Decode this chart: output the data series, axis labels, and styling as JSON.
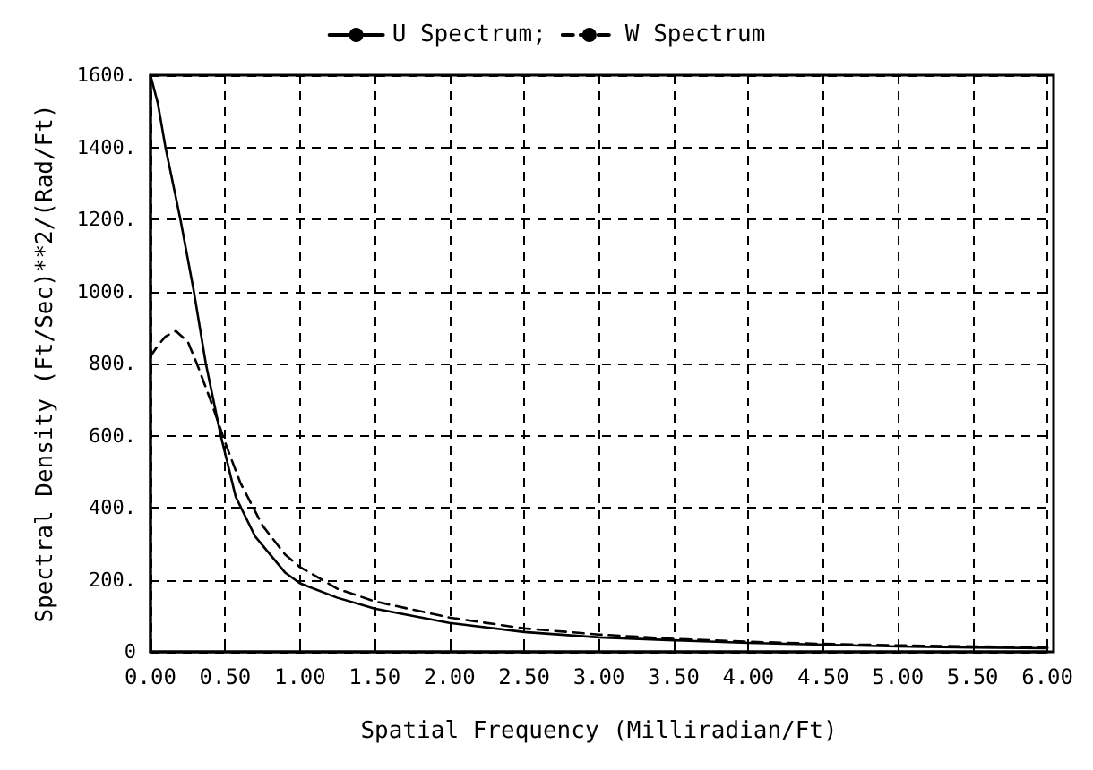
{
  "chart_data": {
    "type": "line",
    "xlabel": "Spatial Frequency (Milliradian/Ft)",
    "ylabel": "Spectral Density (Ft/Sec)**2/(Rad/Ft)",
    "legend": "top",
    "grid": true,
    "marker": "none",
    "xlim": [
      0,
      6
    ],
    "xticks": [
      {
        "value": 0,
        "label": "0.00"
      },
      {
        "value": 0.5,
        "label": "0.50"
      },
      {
        "value": 1,
        "label": "1.00"
      },
      {
        "value": 1.5,
        "label": "1.50"
      },
      {
        "value": 2,
        "label": "2.00"
      },
      {
        "value": 2.5,
        "label": "2.50"
      },
      {
        "value": 3,
        "label": "3.00"
      },
      {
        "value": 3.5,
        "label": "3.50"
      },
      {
        "value": 4,
        "label": "4.00"
      },
      {
        "value": 4.5,
        "label": "4.50"
      },
      {
        "value": 5,
        "label": "5.00"
      },
      {
        "value": 5.5,
        "label": "5.50"
      },
      {
        "value": 6,
        "label": "6.00"
      }
    ],
    "ylim": [
      0,
      1600
    ],
    "yticks": [
      {
        "value": 0,
        "label": "0"
      },
      {
        "value": 200,
        "label": "200."
      },
      {
        "value": 400,
        "label": "400."
      },
      {
        "value": 600,
        "label": "600."
      },
      {
        "value": 800,
        "label": "800."
      },
      {
        "value": 1000,
        "label": "1000."
      },
      {
        "value": 1200,
        "label": "1200."
      },
      {
        "value": 1400,
        "label": "1400."
      },
      {
        "value": 1600,
        "label": "1600."
      }
    ],
    "series": [
      {
        "name": "U Spectrum;",
        "color": "#000000",
        "line_style": "solid",
        "x": [
          0,
          0.05,
          0.1,
          0.2,
          0.29,
          0.37,
          0.47,
          0.57,
          0.7,
          0.9,
          1.0,
          1.25,
          1.5,
          2.0,
          2.5,
          3.0,
          3.5,
          4.0,
          4.5,
          5.0,
          5.5,
          6.0
        ],
        "values": [
          1600,
          1520,
          1400,
          1200,
          1000,
          800,
          600,
          430,
          320,
          220,
          190,
          150,
          120,
          80,
          55,
          40,
          32,
          25,
          20,
          15,
          12,
          10
        ]
      },
      {
        "name": "W Spectrum",
        "color": "#000000",
        "line_style": "dashed",
        "x": [
          0,
          0.05,
          0.1,
          0.17,
          0.25,
          0.31,
          0.4,
          0.5,
          0.6,
          0.75,
          0.9,
          1.0,
          1.25,
          1.5,
          2.0,
          2.5,
          3.0,
          3.5,
          4.0,
          4.5,
          5.0,
          5.5,
          6.0
        ],
        "values": [
          820,
          850,
          875,
          890,
          860,
          800,
          700,
          580,
          470,
          350,
          270,
          235,
          175,
          140,
          95,
          65,
          48,
          36,
          28,
          22,
          18,
          15,
          12
        ]
      }
    ]
  }
}
